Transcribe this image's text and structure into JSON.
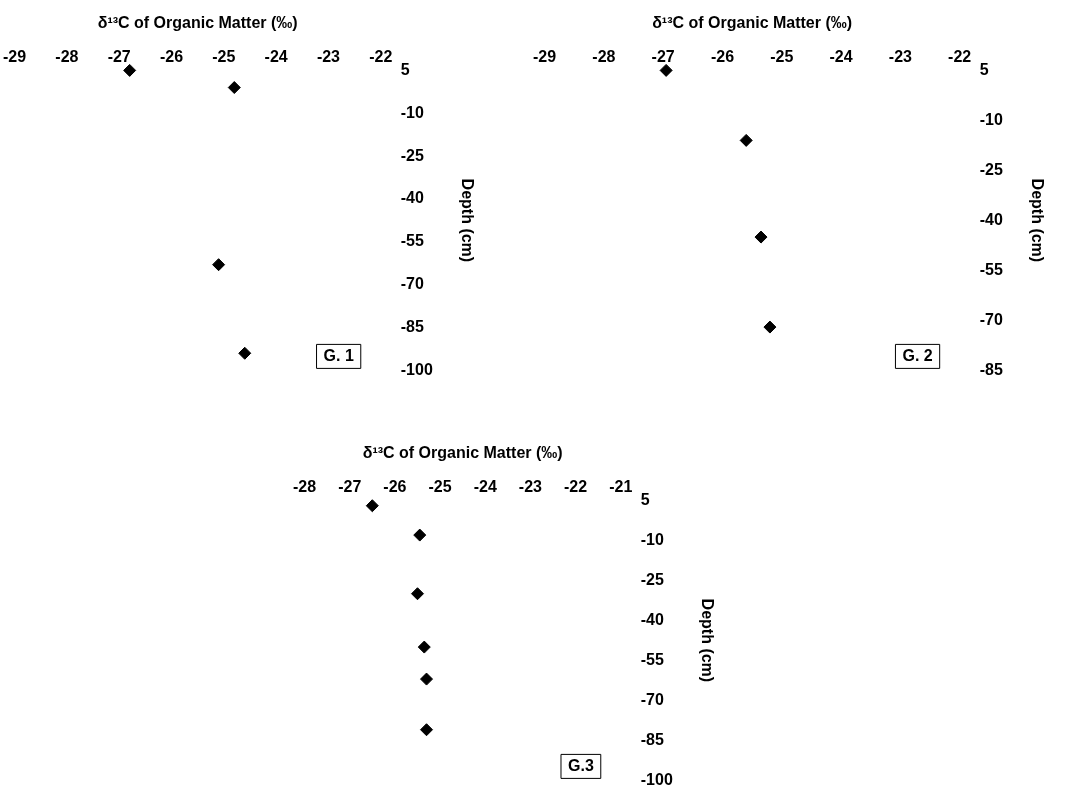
{
  "chart_data": [
    {
      "type": "scatter",
      "xlabel": "δ¹³C of Organic Matter (‰)",
      "ylabel": "Depth (cm)",
      "x": [
        -26.8,
        -24.8,
        -25.1,
        -24.6
      ],
      "values": [
        5,
        -1,
        -63,
        -94
      ],
      "color": "#000000",
      "marker": "diamond",
      "xlim": [
        -29,
        -22
      ],
      "xticks": [
        -29,
        -28,
        -27,
        -26,
        -25,
        -24,
        -23,
        -22
      ],
      "ylim": [
        -100,
        5
      ],
      "yticks": [
        5,
        -10,
        -25,
        -40,
        -55,
        -70,
        -85,
        -100
      ],
      "grid": false,
      "legend": false,
      "annotations": [
        "G. 1"
      ]
    },
    {
      "type": "scatter",
      "xlabel": "δ¹³C of Organic Matter (‰)",
      "ylabel": "Depth (cm)",
      "x": [
        -26.95,
        -25.6,
        -25.35,
        -25.2
      ],
      "values": [
        5,
        -16,
        -45,
        -72
      ],
      "color": "#000000",
      "marker": "diamond",
      "xlim": [
        -29,
        -22
      ],
      "xticks": [
        -29,
        -28,
        -27,
        -26,
        -25,
        -24,
        -23,
        -22
      ],
      "ylim": [
        -85,
        5
      ],
      "yticks": [
        5,
        -10,
        -25,
        -40,
        -55,
        -70,
        -85
      ],
      "grid": false,
      "legend": false,
      "annotations": [
        "G. 2"
      ]
    },
    {
      "type": "scatter",
      "xlabel": "δ¹³C of Organic Matter (‰)",
      "ylabel": "Depth (cm)",
      "x": [
        -26.5,
        -25.45,
        -25.5,
        -25.35,
        -25.3,
        -25.3
      ],
      "values": [
        3,
        -8,
        -30,
        -50,
        -62,
        -81
      ],
      "color": "#000000",
      "marker": "diamond",
      "xlim": [
        -28,
        -21
      ],
      "xticks": [
        -28,
        -27,
        -26,
        -25,
        -24,
        -23,
        -22,
        -21
      ],
      "ylim": [
        -100,
        5
      ],
      "yticks": [
        5,
        -10,
        -25,
        -40,
        -55,
        -70,
        -85,
        -100
      ],
      "grid": false,
      "legend": false,
      "annotations": [
        "G.3"
      ]
    }
  ]
}
